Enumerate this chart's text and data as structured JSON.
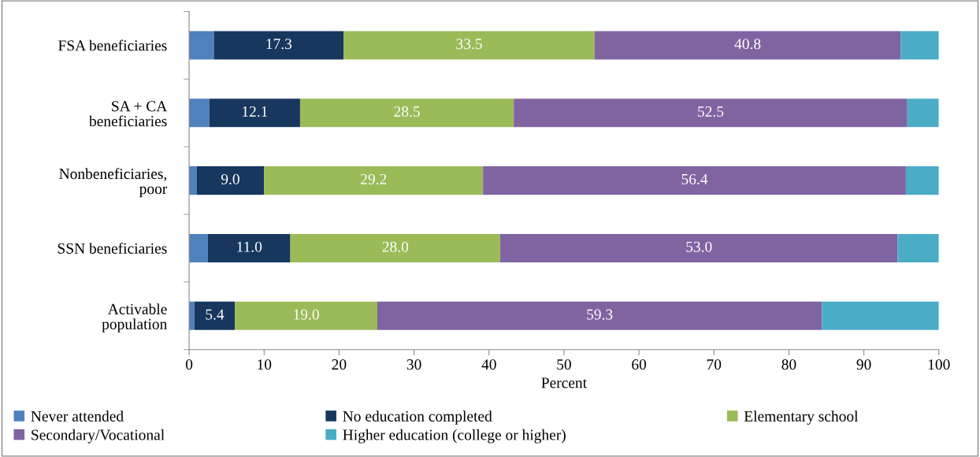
{
  "chart_data": {
    "type": "bar",
    "orientation": "horizontal",
    "stacked": true,
    "xlabel": "Percent",
    "categories": [
      "FSA beneficiaries",
      "SA + CA\nbeneficiaries",
      "Nonbeneficiaries,\npoor",
      "SSN beneficiaries",
      "Activable\npopulation"
    ],
    "series": [
      {
        "name": "Never attended",
        "color": "#4f81bd",
        "values": [
          3.3,
          2.7,
          1.0,
          2.5,
          0.7
        ]
      },
      {
        "name": "No education completed",
        "color": "#17375e",
        "values": [
          17.3,
          12.1,
          9.0,
          11.0,
          5.4
        ],
        "value_labels": [
          "17.3",
          "12.1",
          "9.0",
          "11.0",
          "5.4"
        ]
      },
      {
        "name": "Elementary school",
        "color": "#9bbb59",
        "values": [
          33.5,
          28.5,
          29.2,
          28.0,
          19.0
        ],
        "value_labels": [
          "33.5",
          "28.5",
          "29.2",
          "28.0",
          "19.0"
        ]
      },
      {
        "name": "Secondary/Vocational",
        "color": "#8064a2",
        "values": [
          40.8,
          52.5,
          56.4,
          53.0,
          59.3
        ],
        "value_labels": [
          "40.8",
          "52.5",
          "56.4",
          "53.0",
          "59.3"
        ]
      },
      {
        "name": "Higher education (college or higher)",
        "color": "#4bacc6",
        "values": [
          5.1,
          4.2,
          4.4,
          5.5,
          15.6
        ]
      }
    ],
    "xlim": [
      0,
      100
    ],
    "xticks": [
      0,
      10,
      20,
      30,
      40,
      50,
      60,
      70,
      80,
      90,
      100
    ],
    "grid": false,
    "legend": "bottom"
  }
}
